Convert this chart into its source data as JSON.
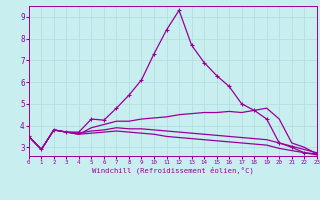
{
  "xlabel": "Windchill (Refroidissement éolien,°C)",
  "background_color": "#c8eef0",
  "grid_color": "#b0dde0",
  "line_color": "#990099",
  "xlim": [
    0,
    23
  ],
  "ylim": [
    2.6,
    9.5
  ],
  "xticks": [
    0,
    1,
    2,
    3,
    4,
    5,
    6,
    7,
    8,
    9,
    10,
    11,
    12,
    13,
    14,
    15,
    16,
    17,
    18,
    19,
    20,
    21,
    22,
    23
  ],
  "yticks": [
    3,
    4,
    5,
    6,
    7,
    8,
    9
  ],
  "series": [
    {
      "x": [
        0,
        1,
        2,
        3,
        4,
        5,
        6,
        7,
        8,
        9,
        10,
        11,
        12,
        13,
        14,
        15,
        16,
        17,
        18,
        19,
        20,
        21,
        22,
        23
      ],
      "y": [
        3.5,
        2.9,
        3.8,
        3.7,
        3.7,
        4.3,
        4.25,
        4.8,
        5.4,
        6.1,
        7.3,
        8.4,
        9.3,
        7.7,
        6.9,
        6.3,
        5.8,
        5.0,
        4.7,
        4.3,
        3.2,
        3.0,
        2.75,
        2.7
      ],
      "marker": "+"
    },
    {
      "x": [
        0,
        1,
        2,
        3,
        4,
        5,
        6,
        7,
        8,
        9,
        10,
        11,
        12,
        13,
        14,
        15,
        16,
        17,
        18,
        19,
        20,
        21,
        22,
        23
      ],
      "y": [
        3.5,
        2.9,
        3.8,
        3.7,
        3.6,
        3.9,
        4.05,
        4.2,
        4.2,
        4.3,
        4.35,
        4.4,
        4.5,
        4.55,
        4.6,
        4.6,
        4.65,
        4.6,
        4.7,
        4.8,
        4.3,
        3.2,
        3.0,
        2.7
      ],
      "marker": null
    },
    {
      "x": [
        0,
        1,
        2,
        3,
        4,
        5,
        6,
        7,
        8,
        9,
        10,
        11,
        12,
        13,
        14,
        15,
        16,
        17,
        18,
        19,
        20,
        21,
        22,
        23
      ],
      "y": [
        3.5,
        2.9,
        3.8,
        3.7,
        3.65,
        3.75,
        3.8,
        3.9,
        3.85,
        3.85,
        3.8,
        3.75,
        3.7,
        3.65,
        3.6,
        3.55,
        3.5,
        3.45,
        3.4,
        3.35,
        3.2,
        3.05,
        2.9,
        2.75
      ],
      "marker": null
    },
    {
      "x": [
        0,
        1,
        2,
        3,
        4,
        5,
        6,
        7,
        8,
        9,
        10,
        11,
        12,
        13,
        14,
        15,
        16,
        17,
        18,
        19,
        20,
        21,
        22,
        23
      ],
      "y": [
        3.5,
        2.9,
        3.8,
        3.7,
        3.6,
        3.65,
        3.7,
        3.75,
        3.7,
        3.65,
        3.6,
        3.5,
        3.45,
        3.4,
        3.35,
        3.3,
        3.25,
        3.2,
        3.15,
        3.1,
        2.95,
        2.85,
        2.75,
        2.65
      ],
      "marker": null
    }
  ]
}
